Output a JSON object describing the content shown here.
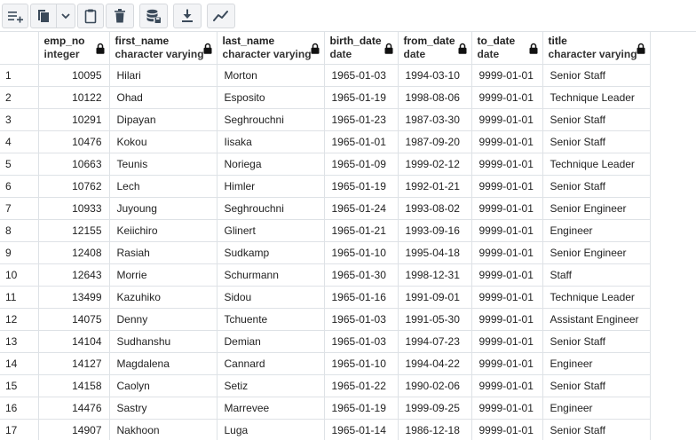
{
  "toolbar": {
    "buttons": [
      {
        "name": "add-row-button",
        "icon": "add-row-icon"
      },
      {
        "name": "copy-button",
        "icon": "copy-icon"
      },
      {
        "name": "copy-options-dropdown",
        "icon": "chevron-down-icon"
      },
      {
        "name": "paste-button",
        "icon": "paste-icon"
      },
      {
        "name": "delete-button",
        "icon": "trash-icon"
      },
      {
        "name": "save-data-button",
        "icon": "database-save-icon"
      },
      {
        "name": "download-button",
        "icon": "download-icon"
      },
      {
        "name": "graph-visualiser-button",
        "icon": "line-chart-icon"
      }
    ]
  },
  "grid": {
    "columns": [
      {
        "key": "emp_no",
        "name": "emp_no",
        "type": "integer",
        "align": "right"
      },
      {
        "key": "first_name",
        "name": "first_name",
        "type": "character varying",
        "align": "left"
      },
      {
        "key": "last_name",
        "name": "last_name",
        "type": "character varying",
        "align": "left"
      },
      {
        "key": "birth_date",
        "name": "birth_date",
        "type": "date",
        "align": "left"
      },
      {
        "key": "from_date",
        "name": "from_date",
        "type": "date",
        "align": "left"
      },
      {
        "key": "to_date",
        "name": "to_date",
        "type": "date",
        "align": "left"
      },
      {
        "key": "title",
        "name": "title",
        "type": "character varying",
        "align": "left"
      }
    ],
    "rows": [
      {
        "n": "1",
        "emp_no": "10095",
        "first_name": "Hilari",
        "last_name": "Morton",
        "birth_date": "1965-01-03",
        "from_date": "1994-03-10",
        "to_date": "9999-01-01",
        "title": "Senior Staff"
      },
      {
        "n": "2",
        "emp_no": "10122",
        "first_name": "Ohad",
        "last_name": "Esposito",
        "birth_date": "1965-01-19",
        "from_date": "1998-08-06",
        "to_date": "9999-01-01",
        "title": "Technique Leader"
      },
      {
        "n": "3",
        "emp_no": "10291",
        "first_name": "Dipayan",
        "last_name": "Seghrouchni",
        "birth_date": "1965-01-23",
        "from_date": "1987-03-30",
        "to_date": "9999-01-01",
        "title": "Senior Staff"
      },
      {
        "n": "4",
        "emp_no": "10476",
        "first_name": "Kokou",
        "last_name": "Iisaka",
        "birth_date": "1965-01-01",
        "from_date": "1987-09-20",
        "to_date": "9999-01-01",
        "title": "Senior Staff"
      },
      {
        "n": "5",
        "emp_no": "10663",
        "first_name": "Teunis",
        "last_name": "Noriega",
        "birth_date": "1965-01-09",
        "from_date": "1999-02-12",
        "to_date": "9999-01-01",
        "title": "Technique Leader"
      },
      {
        "n": "6",
        "emp_no": "10762",
        "first_name": "Lech",
        "last_name": "Himler",
        "birth_date": "1965-01-19",
        "from_date": "1992-01-21",
        "to_date": "9999-01-01",
        "title": "Senior Staff"
      },
      {
        "n": "7",
        "emp_no": "10933",
        "first_name": "Juyoung",
        "last_name": "Seghrouchni",
        "birth_date": "1965-01-24",
        "from_date": "1993-08-02",
        "to_date": "9999-01-01",
        "title": "Senior Engineer"
      },
      {
        "n": "8",
        "emp_no": "12155",
        "first_name": "Keiichiro",
        "last_name": "Glinert",
        "birth_date": "1965-01-21",
        "from_date": "1993-09-16",
        "to_date": "9999-01-01",
        "title": "Engineer"
      },
      {
        "n": "9",
        "emp_no": "12408",
        "first_name": "Rasiah",
        "last_name": "Sudkamp",
        "birth_date": "1965-01-10",
        "from_date": "1995-04-18",
        "to_date": "9999-01-01",
        "title": "Senior Engineer"
      },
      {
        "n": "10",
        "emp_no": "12643",
        "first_name": "Morrie",
        "last_name": "Schurmann",
        "birth_date": "1965-01-30",
        "from_date": "1998-12-31",
        "to_date": "9999-01-01",
        "title": "Staff"
      },
      {
        "n": "11",
        "emp_no": "13499",
        "first_name": "Kazuhiko",
        "last_name": "Sidou",
        "birth_date": "1965-01-16",
        "from_date": "1991-09-01",
        "to_date": "9999-01-01",
        "title": "Technique Leader"
      },
      {
        "n": "12",
        "emp_no": "14075",
        "first_name": "Denny",
        "last_name": "Tchuente",
        "birth_date": "1965-01-03",
        "from_date": "1991-05-30",
        "to_date": "9999-01-01",
        "title": "Assistant Engineer"
      },
      {
        "n": "13",
        "emp_no": "14104",
        "first_name": "Sudhanshu",
        "last_name": "Demian",
        "birth_date": "1965-01-03",
        "from_date": "1994-07-23",
        "to_date": "9999-01-01",
        "title": "Senior Staff"
      },
      {
        "n": "14",
        "emp_no": "14127",
        "first_name": "Magdalena",
        "last_name": "Cannard",
        "birth_date": "1965-01-10",
        "from_date": "1994-04-22",
        "to_date": "9999-01-01",
        "title": "Engineer"
      },
      {
        "n": "15",
        "emp_no": "14158",
        "first_name": "Caolyn",
        "last_name": "Setiz",
        "birth_date": "1965-01-22",
        "from_date": "1990-02-06",
        "to_date": "9999-01-01",
        "title": "Senior Staff"
      },
      {
        "n": "16",
        "emp_no": "14476",
        "first_name": "Sastry",
        "last_name": "Marrevee",
        "birth_date": "1965-01-19",
        "from_date": "1999-09-25",
        "to_date": "9999-01-01",
        "title": "Engineer"
      },
      {
        "n": "17",
        "emp_no": "14907",
        "first_name": "Nakhoon",
        "last_name": "Luga",
        "birth_date": "1965-01-14",
        "from_date": "1986-12-18",
        "to_date": "9999-01-01",
        "title": "Senior Staff"
      }
    ]
  }
}
